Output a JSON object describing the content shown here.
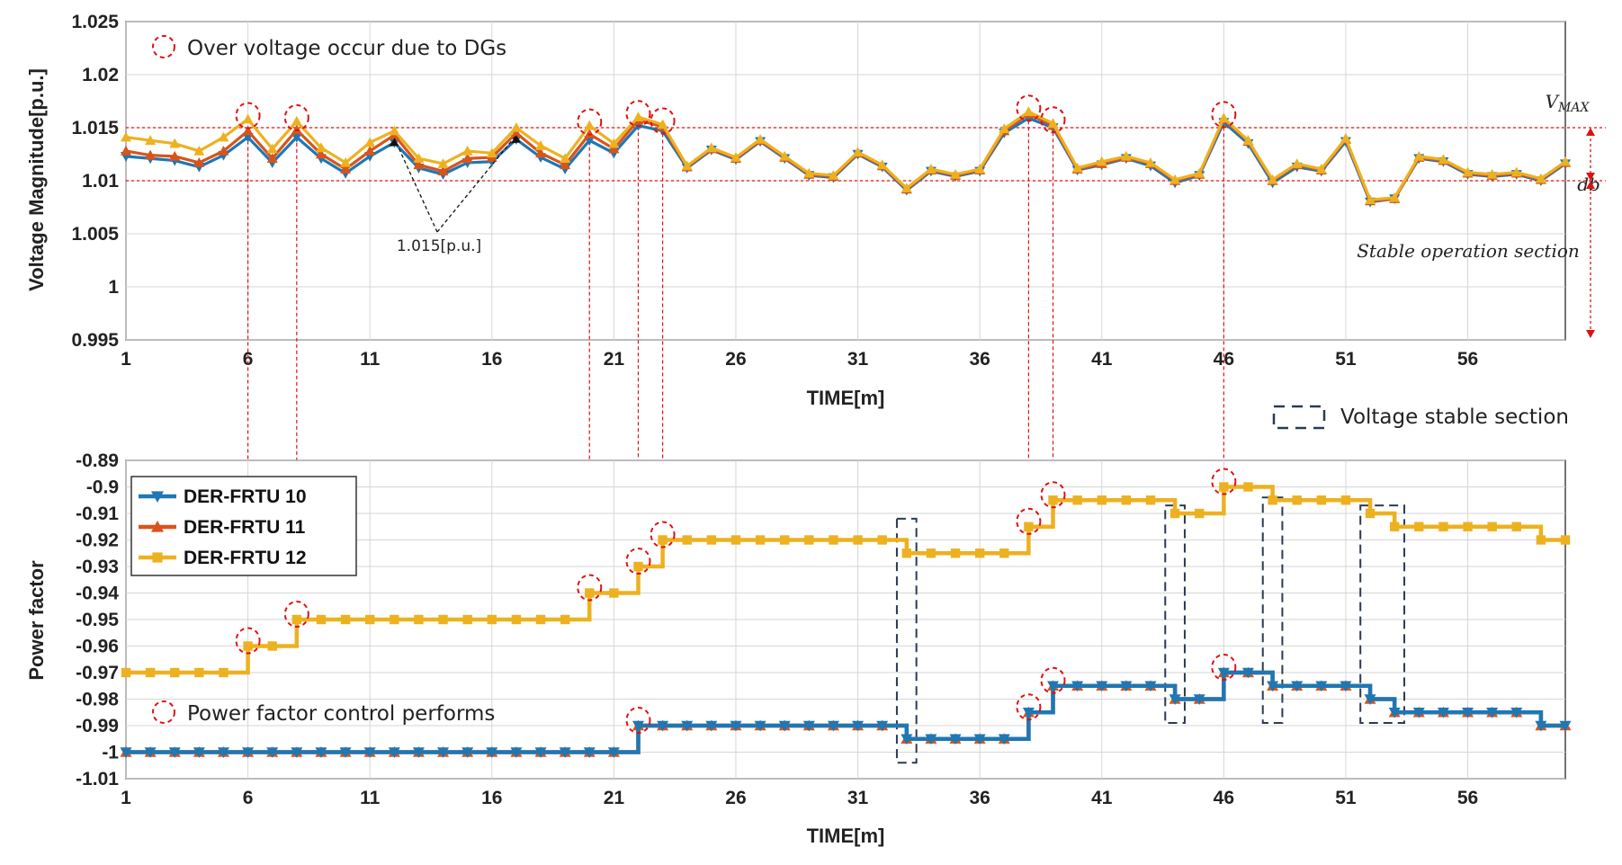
{
  "chart_data": [
    {
      "type": "line",
      "xlabel": "TIME[m]",
      "ylabel": "Voltage Magnitude[p.u.]",
      "xlim": [
        1,
        60
      ],
      "ylim": [
        0.995,
        1.025
      ],
      "xticks": [
        "1",
        "6",
        "11",
        "16",
        "21",
        "26",
        "31",
        "36",
        "41",
        "46",
        "51",
        "56"
      ],
      "yticks": [
        "0.995",
        "1",
        "1.005",
        "1.01",
        "1.015",
        "1.02",
        "1.025"
      ],
      "grid": true,
      "thresholds": [
        1.015,
        1.01
      ],
      "annotations": {
        "legend_overvoltage": "Over voltage occur due to DGs",
        "value_label": "1.015[p.u.]",
        "vmax_label": "V",
        "vmax_sub": "MAX",
        "db_label": "db",
        "stable_label": "Stable operation section"
      },
      "x": [
        1,
        2,
        3,
        4,
        5,
        6,
        7,
        8,
        9,
        10,
        11,
        12,
        13,
        14,
        15,
        16,
        17,
        18,
        19,
        20,
        21,
        22,
        23,
        24,
        25,
        26,
        27,
        28,
        29,
        30,
        31,
        32,
        33,
        34,
        35,
        36,
        37,
        38,
        39,
        40,
        41,
        42,
        43,
        44,
        45,
        46,
        47,
        48,
        49,
        50,
        51,
        52,
        53,
        54,
        55,
        56,
        57,
        58,
        59,
        60
      ],
      "series": [
        {
          "name": "DER-FRTU 10",
          "color": "#1f77b4",
          "marker": "triangle-down",
          "values": [
            1.0123,
            1.0121,
            1.0119,
            1.0113,
            1.0124,
            1.0141,
            1.0117,
            1.0141,
            1.0121,
            1.0107,
            1.0123,
            1.0136,
            1.0112,
            1.0106,
            1.0117,
            1.0118,
            1.0139,
            1.0122,
            1.0111,
            1.0138,
            1.0126,
            1.0152,
            1.0147,
            1.0112,
            1.0129,
            1.012,
            1.0137,
            1.0121,
            1.0105,
            1.0103,
            1.0125,
            1.0113,
            1.0091,
            1.0109,
            1.0104,
            1.0109,
            1.0145,
            1.0159,
            1.015,
            1.011,
            1.0115,
            1.0121,
            1.0114,
            1.0098,
            1.0105,
            1.0155,
            1.0135,
            1.0098,
            1.0113,
            1.0109,
            1.0137,
            1.008,
            1.0083,
            1.0121,
            1.0118,
            1.0106,
            1.0104,
            1.0106,
            1.01,
            1.0116
          ]
        },
        {
          "name": "DER-FRTU 11",
          "color": "#d9541a",
          "marker": "triangle-up",
          "values": [
            1.0128,
            1.0124,
            1.0123,
            1.0117,
            1.0128,
            1.0147,
            1.0121,
            1.0148,
            1.0125,
            1.0111,
            1.0128,
            1.0143,
            1.0115,
            1.0109,
            1.0121,
            1.0122,
            1.0145,
            1.0126,
            1.0115,
            1.0144,
            1.013,
            1.0157,
            1.0151,
            1.0113,
            1.013,
            1.0121,
            1.0138,
            1.0122,
            1.0106,
            1.0104,
            1.0126,
            1.0114,
            1.0092,
            1.011,
            1.0105,
            1.011,
            1.0147,
            1.0163,
            1.0152,
            1.0111,
            1.0116,
            1.0122,
            1.0116,
            1.01,
            1.0106,
            1.0158,
            1.0137,
            1.01,
            1.0115,
            1.011,
            1.0139,
            1.0081,
            1.0083,
            1.0122,
            1.0119,
            1.0107,
            1.0105,
            1.0107,
            1.0101,
            1.0117
          ]
        },
        {
          "name": "DER-FRTU 12",
          "color": "#edb120",
          "marker": "triangle-up",
          "values": [
            1.0141,
            1.0138,
            1.0135,
            1.0128,
            1.0141,
            1.0158,
            1.013,
            1.0156,
            1.0131,
            1.0117,
            1.0136,
            1.0147,
            1.0121,
            1.0116,
            1.0128,
            1.0126,
            1.015,
            1.0133,
            1.0121,
            1.0152,
            1.0135,
            1.016,
            1.0153,
            1.0114,
            1.0131,
            1.0122,
            1.0139,
            1.0123,
            1.0107,
            1.0105,
            1.0127,
            1.0115,
            1.0093,
            1.0111,
            1.0106,
            1.0111,
            1.0149,
            1.0165,
            1.0154,
            1.0112,
            1.0118,
            1.0123,
            1.0117,
            1.0101,
            1.0107,
            1.0159,
            1.0138,
            1.0101,
            1.0116,
            1.0111,
            1.014,
            1.0082,
            1.0084,
            1.0123,
            1.012,
            1.0108,
            1.0106,
            1.0108,
            1.0102,
            1.0118
          ]
        }
      ]
    },
    {
      "type": "line",
      "step": true,
      "xlabel": "TIME[m]",
      "ylabel": "Power factor",
      "xlim": [
        1,
        60
      ],
      "ylim": [
        -1.01,
        -0.89
      ],
      "xticks": [
        "1",
        "6",
        "11",
        "16",
        "21",
        "26",
        "31",
        "36",
        "41",
        "46",
        "51",
        "56"
      ],
      "yticks": [
        "-1.01",
        "-1",
        "-0.99",
        "-0.98",
        "-0.97",
        "-0.96",
        "-0.95",
        "-0.94",
        "-0.93",
        "-0.92",
        "-0.91",
        "-0.9",
        "-0.89"
      ],
      "grid": true,
      "legend_placement": "top-left",
      "annotations": {
        "legend_pf": "Power factor control performs",
        "legend_stable": "Voltage stable section"
      },
      "x": [
        1,
        2,
        3,
        4,
        5,
        6,
        7,
        8,
        9,
        10,
        11,
        12,
        13,
        14,
        15,
        16,
        17,
        18,
        19,
        20,
        21,
        22,
        23,
        24,
        25,
        26,
        27,
        28,
        29,
        30,
        31,
        32,
        33,
        34,
        35,
        36,
        37,
        38,
        39,
        40,
        41,
        42,
        43,
        44,
        45,
        46,
        47,
        48,
        49,
        50,
        51,
        52,
        53,
        54,
        55,
        56,
        57,
        58,
        59,
        60
      ],
      "series": [
        {
          "name": "DER-FRTU 10",
          "color": "#1f77b4",
          "marker": "triangle-down",
          "values": [
            -1,
            -1,
            -1,
            -1,
            -1,
            -1,
            -1,
            -1,
            -1,
            -1,
            -1,
            -1,
            -1,
            -1,
            -1,
            -1,
            -1,
            -1,
            -1,
            -1,
            -1,
            -0.99,
            -0.99,
            -0.99,
            -0.99,
            -0.99,
            -0.99,
            -0.99,
            -0.99,
            -0.99,
            -0.99,
            -0.99,
            -0.995,
            -0.995,
            -0.995,
            -0.995,
            -0.995,
            -0.985,
            -0.975,
            -0.975,
            -0.975,
            -0.975,
            -0.975,
            -0.98,
            -0.98,
            -0.97,
            -0.97,
            -0.975,
            -0.975,
            -0.975,
            -0.975,
            -0.98,
            -0.985,
            -0.985,
            -0.985,
            -0.985,
            -0.985,
            -0.985,
            -0.99,
            -0.99
          ]
        },
        {
          "name": "DER-FRTU 11",
          "color": "#d9541a",
          "marker": "triangle-up",
          "values": [
            -1,
            -1,
            -1,
            -1,
            -1,
            -1,
            -1,
            -1,
            -1,
            -1,
            -1,
            -1,
            -1,
            -1,
            -1,
            -1,
            -1,
            -1,
            -1,
            -1,
            -1,
            -0.99,
            -0.99,
            -0.99,
            -0.99,
            -0.99,
            -0.99,
            -0.99,
            -0.99,
            -0.99,
            -0.99,
            -0.99,
            -0.995,
            -0.995,
            -0.995,
            -0.995,
            -0.995,
            -0.985,
            -0.975,
            -0.975,
            -0.975,
            -0.975,
            -0.975,
            -0.98,
            -0.98,
            -0.97,
            -0.97,
            -0.975,
            -0.975,
            -0.975,
            -0.975,
            -0.98,
            -0.985,
            -0.985,
            -0.985,
            -0.985,
            -0.985,
            -0.985,
            -0.99,
            -0.99
          ]
        },
        {
          "name": "DER-FRTU 12",
          "color": "#edb120",
          "marker": "square",
          "values": [
            -0.97,
            -0.97,
            -0.97,
            -0.97,
            -0.97,
            -0.96,
            -0.96,
            -0.95,
            -0.95,
            -0.95,
            -0.95,
            -0.95,
            -0.95,
            -0.95,
            -0.95,
            -0.95,
            -0.95,
            -0.95,
            -0.95,
            -0.94,
            -0.94,
            -0.93,
            -0.92,
            -0.92,
            -0.92,
            -0.92,
            -0.92,
            -0.92,
            -0.92,
            -0.92,
            -0.92,
            -0.92,
            -0.925,
            -0.925,
            -0.925,
            -0.925,
            -0.925,
            -0.915,
            -0.905,
            -0.905,
            -0.905,
            -0.905,
            -0.905,
            -0.91,
            -0.91,
            -0.9,
            -0.9,
            -0.905,
            -0.905,
            -0.905,
            -0.905,
            -0.91,
            -0.915,
            -0.915,
            -0.915,
            -0.915,
            -0.915,
            -0.915,
            -0.92,
            -0.92
          ]
        }
      ]
    }
  ]
}
